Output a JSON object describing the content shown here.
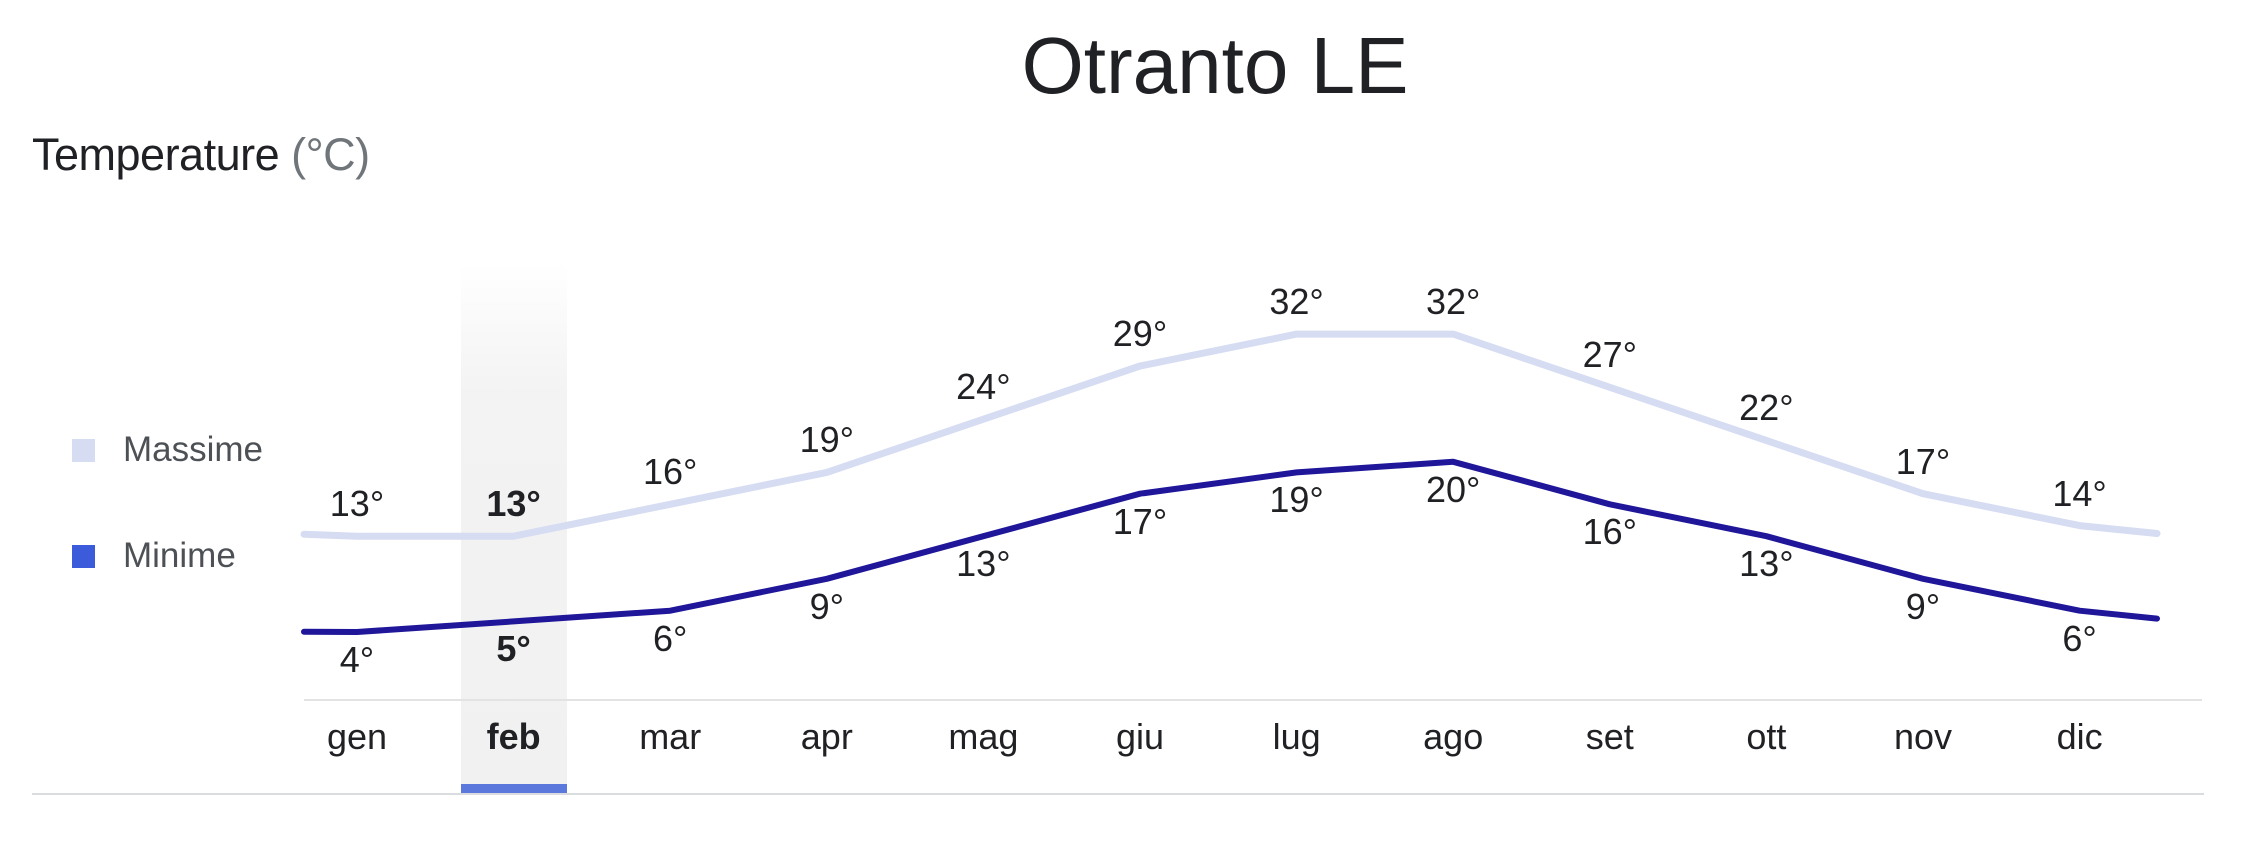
{
  "header": {
    "title": "Otranto LE"
  },
  "section": {
    "heading": "Temperature",
    "unit": "(°C)"
  },
  "legend": {
    "items": [
      {
        "label": "Massime",
        "color": "#d6dcf2"
      },
      {
        "label": "Minime",
        "color": "#3b5bdb"
      }
    ]
  },
  "colors": {
    "max_line": "#d6dcf2",
    "min_line": "#1f1699",
    "highlight_underline": "#5b78dc",
    "text": "#202124",
    "muted_text": "#70757a"
  },
  "selected_month_index": 1,
  "chart_data": {
    "type": "line",
    "title": "Otranto LE",
    "subtitle": "Temperature (°C)",
    "xlabel": "",
    "ylabel": "Temperature (°C)",
    "categories": [
      "gen",
      "feb",
      "mar",
      "apr",
      "mag",
      "giu",
      "lug",
      "ago",
      "set",
      "ott",
      "nov",
      "dic"
    ],
    "series": [
      {
        "name": "Massime",
        "values": [
          13,
          13,
          16,
          19,
          24,
          29,
          32,
          32,
          27,
          22,
          17,
          14
        ]
      },
      {
        "name": "Minime",
        "values": [
          4,
          5,
          6,
          9,
          13,
          17,
          19,
          20,
          16,
          13,
          9,
          6
        ]
      }
    ],
    "value_suffix": "°",
    "grid": false,
    "legend_position": "left",
    "highlighted_category": "feb"
  }
}
